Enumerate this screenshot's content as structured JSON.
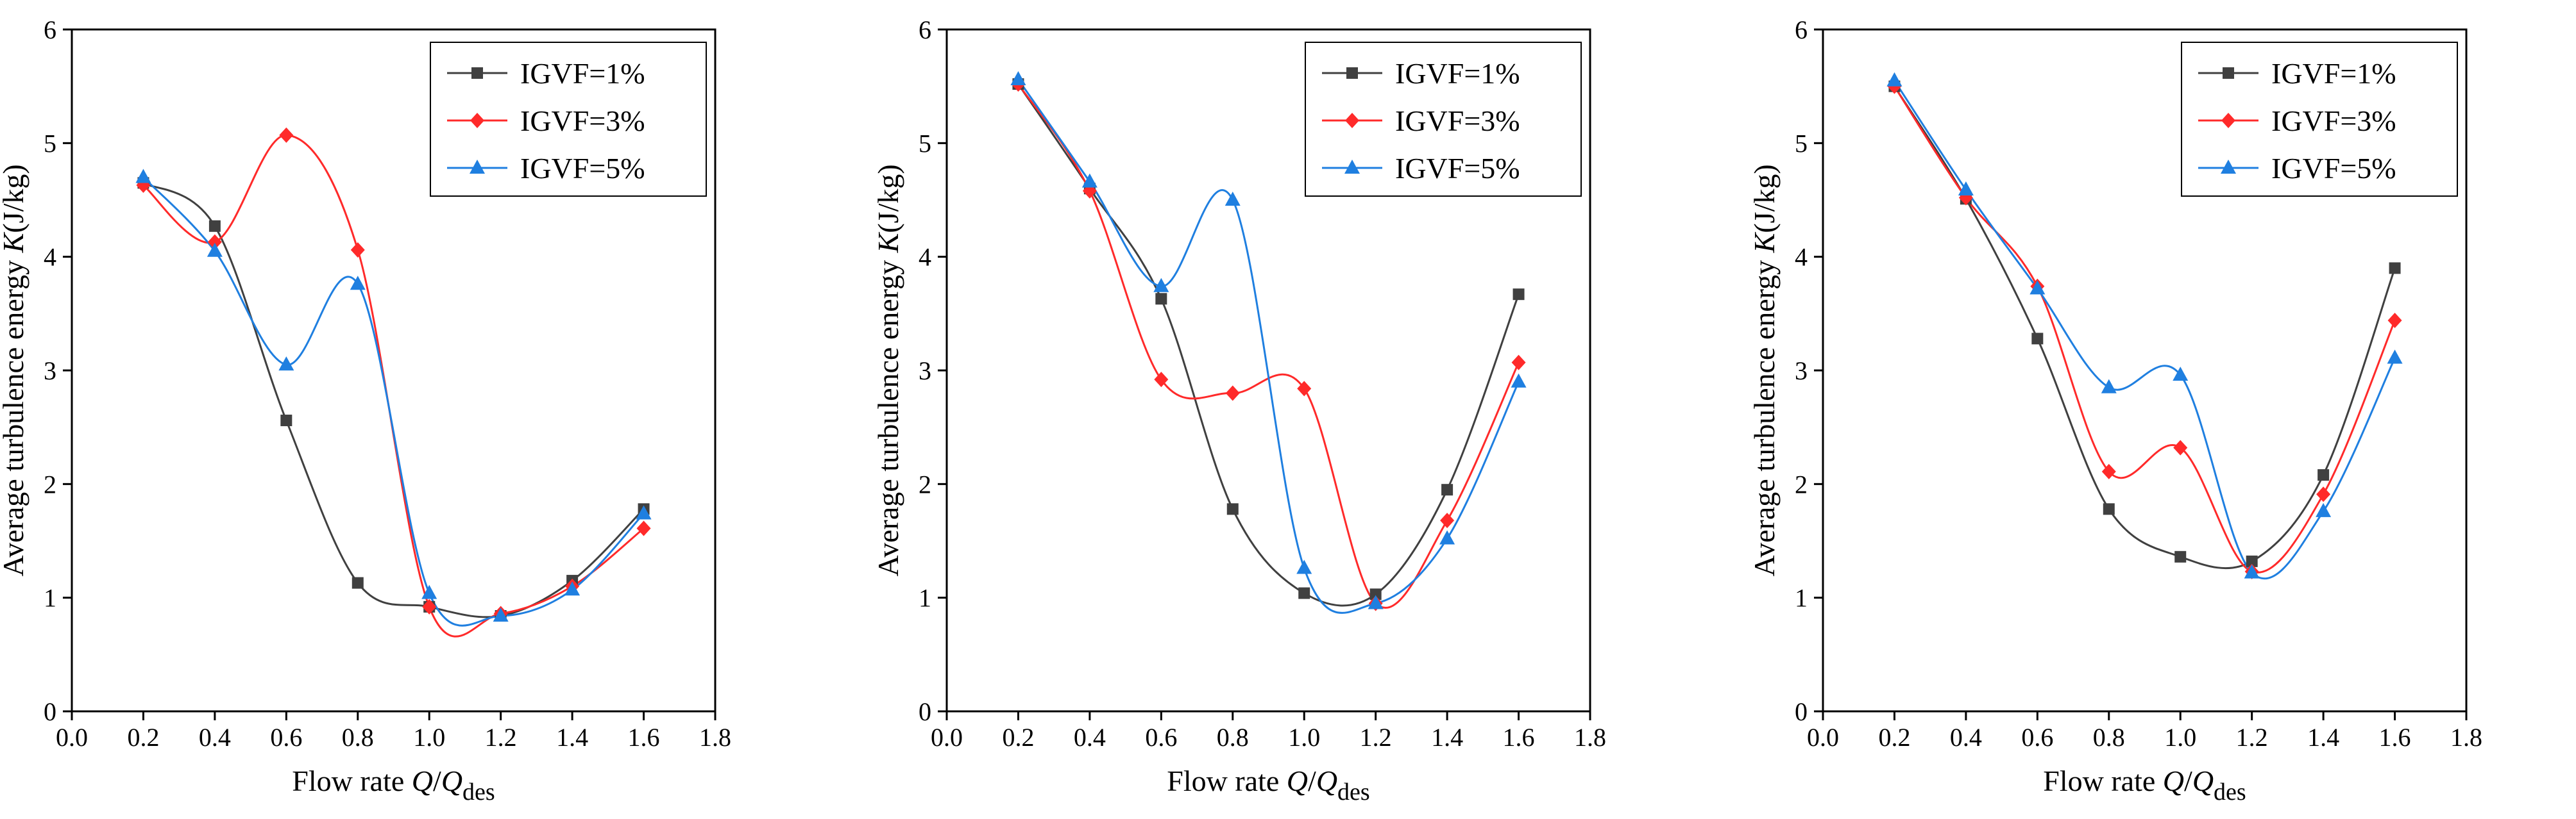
{
  "chart_data": [
    {
      "type": "line",
      "xlabel": {
        "prefix": "Flow rate ",
        "var": "Q",
        "slash": "/",
        "var2": "Q",
        "sub": "des"
      },
      "ylabel": {
        "prefix": "Average turbulence energy  ",
        "var": "K",
        "unit": "(J/kg)"
      },
      "xlim": [
        0.0,
        1.8
      ],
      "ylim": [
        0,
        6
      ],
      "xticks": [
        "0.0",
        "0.2",
        "0.4",
        "0.6",
        "0.8",
        "1.0",
        "1.2",
        "1.4",
        "1.6",
        "1.8"
      ],
      "yticks": [
        "0",
        "1",
        "2",
        "3",
        "4",
        "5",
        "6"
      ],
      "legend_position": "top-right",
      "series": [
        {
          "name": "IGVF=1%",
          "color": "#404040",
          "marker": "square",
          "x": [
            0.2,
            0.4,
            0.6,
            0.8,
            1.0,
            1.2,
            1.4,
            1.6
          ],
          "y": [
            4.65,
            4.27,
            2.56,
            1.13,
            0.92,
            0.84,
            1.15,
            1.78
          ]
        },
        {
          "name": "IGVF=3%",
          "color": "#ff2a2a",
          "marker": "diamond",
          "x": [
            0.2,
            0.4,
            0.6,
            0.8,
            1.0,
            1.2,
            1.4,
            1.6
          ],
          "y": [
            4.63,
            4.13,
            5.07,
            4.06,
            0.92,
            0.86,
            1.1,
            1.61
          ]
        },
        {
          "name": "IGVF=5%",
          "color": "#1f7fe0",
          "marker": "triangle",
          "x": [
            0.2,
            0.4,
            0.6,
            0.8,
            1.0,
            1.2,
            1.4,
            1.6
          ],
          "y": [
            4.7,
            4.05,
            3.05,
            3.76,
            1.04,
            0.84,
            1.07,
            1.74
          ]
        }
      ]
    },
    {
      "type": "line",
      "xlabel": {
        "prefix": "Flow rate ",
        "var": "Q",
        "slash": "/",
        "var2": "Q",
        "sub": "des"
      },
      "ylabel": {
        "prefix": "Average turbulence energy  ",
        "var": "K",
        "unit": "(J/kg)"
      },
      "xlim": [
        0.0,
        1.8
      ],
      "ylim": [
        0,
        6
      ],
      "xticks": [
        "0.0",
        "0.2",
        "0.4",
        "0.6",
        "0.8",
        "1.0",
        "1.2",
        "1.4",
        "1.6",
        "1.8"
      ],
      "yticks": [
        "0",
        "1",
        "2",
        "3",
        "4",
        "5",
        "6"
      ],
      "legend_position": "top-right",
      "series": [
        {
          "name": "IGVF=1%",
          "color": "#404040",
          "marker": "square",
          "x": [
            0.2,
            0.4,
            0.6,
            0.8,
            1.0,
            1.2,
            1.4,
            1.6
          ],
          "y": [
            5.52,
            4.6,
            3.63,
            1.78,
            1.04,
            1.03,
            1.95,
            3.67
          ]
        },
        {
          "name": "IGVF=3%",
          "color": "#ff2a2a",
          "marker": "diamond",
          "x": [
            0.2,
            0.4,
            0.6,
            0.8,
            1.0,
            1.2,
            1.4,
            1.6
          ],
          "y": [
            5.52,
            4.58,
            2.92,
            2.8,
            2.84,
            0.95,
            1.68,
            3.07
          ]
        },
        {
          "name": "IGVF=5%",
          "color": "#1f7fe0",
          "marker": "triangle",
          "x": [
            0.2,
            0.4,
            0.6,
            0.8,
            1.0,
            1.2,
            1.4,
            1.6
          ],
          "y": [
            5.56,
            4.66,
            3.74,
            4.5,
            1.26,
            0.95,
            1.52,
            2.9
          ]
        }
      ]
    },
    {
      "type": "line",
      "xlabel": {
        "prefix": "Flow rate ",
        "var": "Q",
        "slash": "/",
        "var2": "Q",
        "sub": "des"
      },
      "ylabel": {
        "prefix": "Average turbulence energy  ",
        "var": "K",
        "unit": "(J/kg)"
      },
      "xlim": [
        0.0,
        1.8
      ],
      "ylim": [
        0,
        6
      ],
      "xticks": [
        "0.0",
        "0.2",
        "0.4",
        "0.6",
        "0.8",
        "1.0",
        "1.2",
        "1.4",
        "1.6",
        "1.8"
      ],
      "yticks": [
        "0",
        "1",
        "2",
        "3",
        "4",
        "5",
        "6"
      ],
      "legend_position": "top-right",
      "series": [
        {
          "name": "IGVF=1%",
          "color": "#404040",
          "marker": "square",
          "x": [
            0.2,
            0.4,
            0.6,
            0.8,
            1.0,
            1.2,
            1.4,
            1.6
          ],
          "y": [
            5.5,
            4.51,
            3.28,
            1.78,
            1.36,
            1.32,
            2.08,
            3.9
          ]
        },
        {
          "name": "IGVF=3%",
          "color": "#ff2a2a",
          "marker": "diamond",
          "x": [
            0.2,
            0.4,
            0.6,
            0.8,
            1.0,
            1.2,
            1.4,
            1.6
          ],
          "y": [
            5.5,
            4.52,
            3.74,
            2.11,
            2.32,
            1.23,
            1.91,
            3.44
          ]
        },
        {
          "name": "IGVF=5%",
          "color": "#1f7fe0",
          "marker": "triangle",
          "x": [
            0.2,
            0.4,
            0.6,
            0.8,
            1.0,
            1.2,
            1.4,
            1.6
          ],
          "y": [
            5.55,
            4.59,
            3.72,
            2.85,
            2.96,
            1.22,
            1.76,
            3.11
          ]
        }
      ]
    }
  ]
}
